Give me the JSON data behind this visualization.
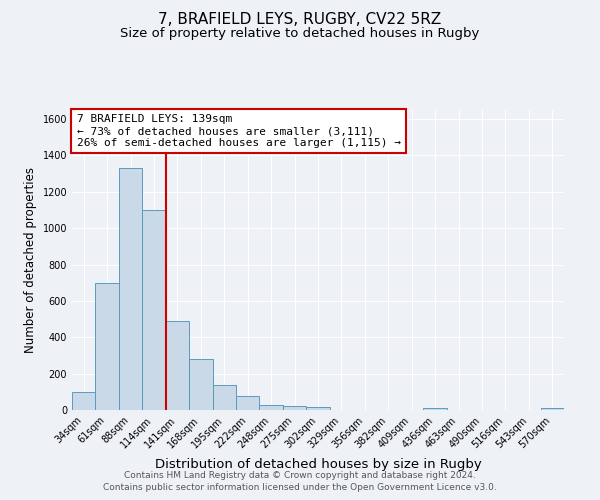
{
  "title": "7, BRAFIELD LEYS, RUGBY, CV22 5RZ",
  "subtitle": "Size of property relative to detached houses in Rugby",
  "xlabel": "Distribution of detached houses by size in Rugby",
  "ylabel": "Number of detached properties",
  "bar_labels": [
    "34sqm",
    "61sqm",
    "88sqm",
    "114sqm",
    "141sqm",
    "168sqm",
    "195sqm",
    "222sqm",
    "248sqm",
    "275sqm",
    "302sqm",
    "329sqm",
    "356sqm",
    "382sqm",
    "409sqm",
    "436sqm",
    "463sqm",
    "490sqm",
    "516sqm",
    "543sqm",
    "570sqm"
  ],
  "bar_values": [
    100,
    700,
    1330,
    1100,
    490,
    280,
    140,
    75,
    30,
    20,
    15,
    0,
    0,
    0,
    0,
    12,
    0,
    0,
    0,
    0,
    10
  ],
  "bar_color": "#c9d9e8",
  "bar_edge_color": "#5a9abf",
  "vline_color": "#cc0000",
  "annotation_line1": "7 BRAFIELD LEYS: 139sqm",
  "annotation_line2": "← 73% of detached houses are smaller (3,111)",
  "annotation_line3": "26% of semi-detached houses are larger (1,115) →",
  "annotation_box_color": "white",
  "annotation_box_edge": "#cc0000",
  "ylim": [
    0,
    1650
  ],
  "yticks": [
    0,
    200,
    400,
    600,
    800,
    1000,
    1200,
    1400,
    1600
  ],
  "footer_line1": "Contains HM Land Registry data © Crown copyright and database right 2024.",
  "footer_line2": "Contains public sector information licensed under the Open Government Licence v3.0.",
  "background_color": "#eef2f7",
  "grid_color": "#ffffff",
  "title_fontsize": 11,
  "subtitle_fontsize": 9.5,
  "xlabel_fontsize": 9.5,
  "ylabel_fontsize": 8.5,
  "tick_fontsize": 7,
  "annotation_fontsize": 8,
  "footer_fontsize": 6.5,
  "vline_x_index": 3.5
}
